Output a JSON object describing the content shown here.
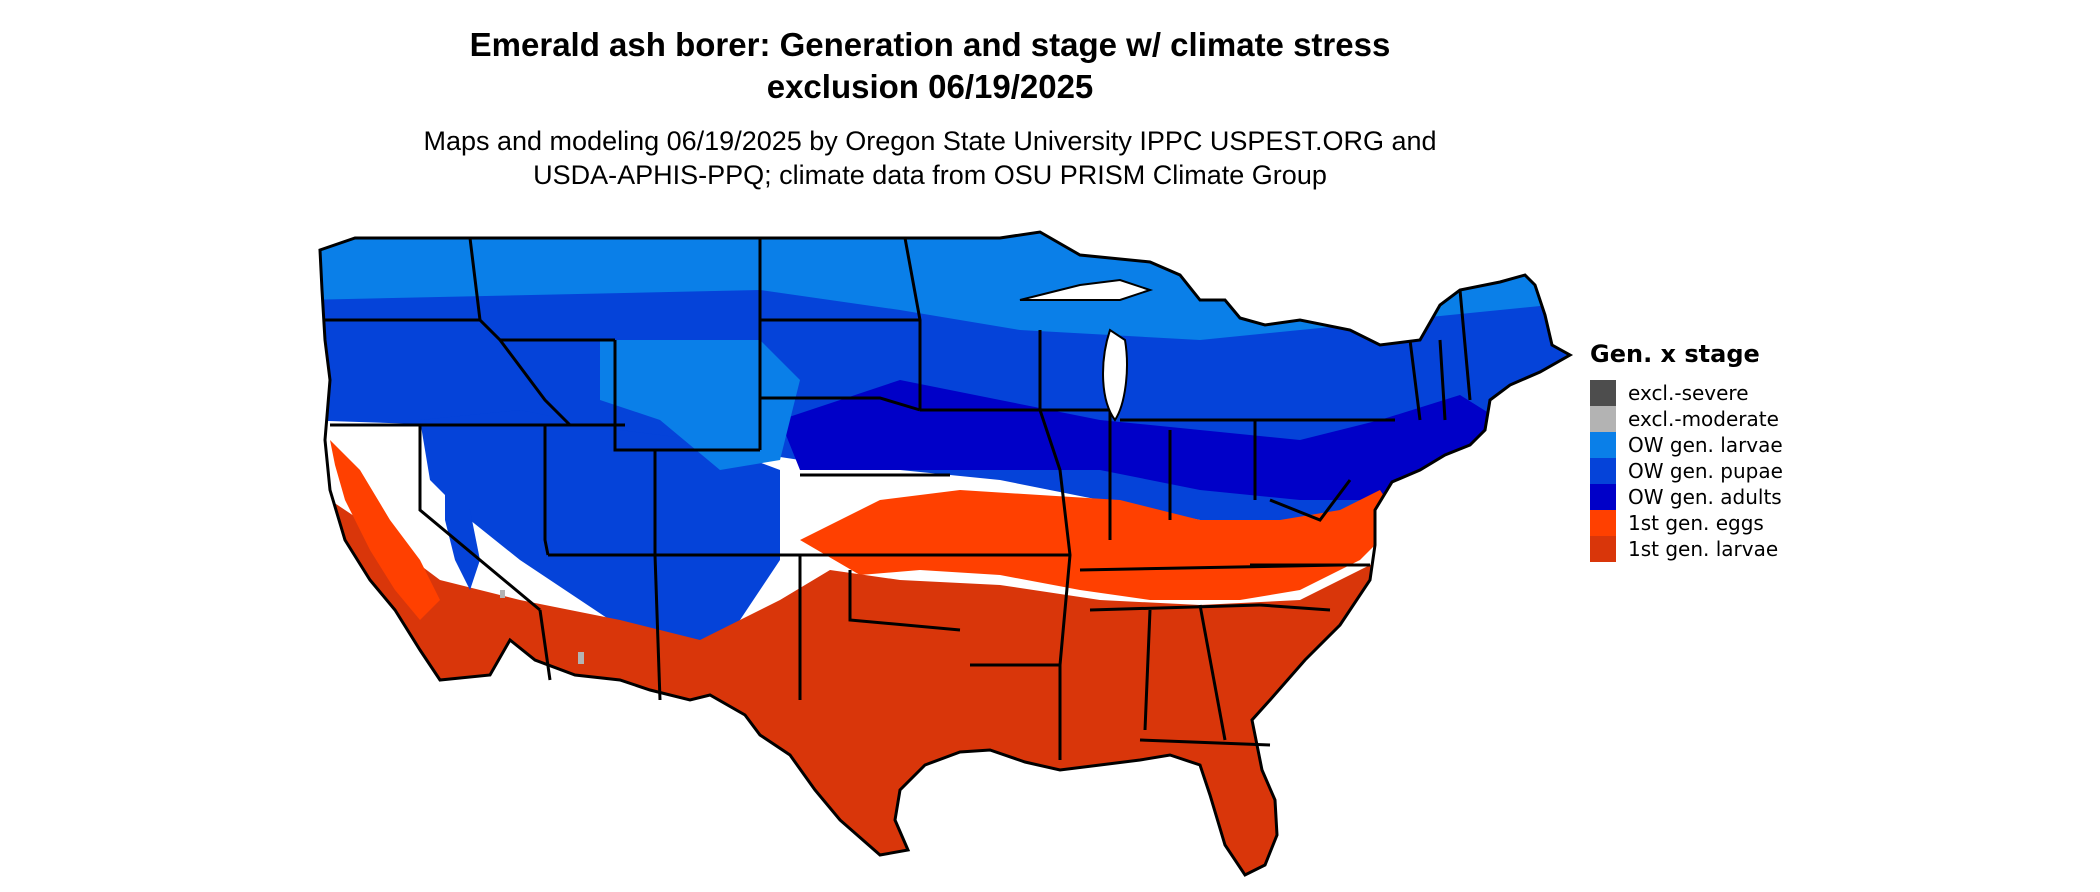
{
  "title_line1": "Emerald ash borer: Generation and stage w/ climate stress",
  "title_line2": "exclusion 06/19/2025",
  "subtitle_line1": "Maps and modeling 06/19/2025 by Oregon State University IPPC USPEST.ORG and",
  "subtitle_line2": "USDA-APHIS-PPQ; climate data from OSU PRISM Climate Group",
  "legend": {
    "title": "Gen. x stage",
    "items": [
      {
        "label": "excl.-severe",
        "color": "#4d4d4d"
      },
      {
        "label": "excl.-moderate",
        "color": "#b3b3b3"
      },
      {
        "label": "OW gen. larvae",
        "color": "#0a7fe8"
      },
      {
        "label": "OW gen. pupae",
        "color": "#0543d9"
      },
      {
        "label": "OW gen. adults",
        "color": "#0000c8"
      },
      {
        "label": "1st gen. eggs",
        "color": "#ff4000"
      },
      {
        "label": "1st gen. larvae",
        "color": "#d9360a"
      }
    ]
  },
  "map_colors": {
    "ow_larvae": "#0a7fe8",
    "ow_pupae": "#0543d9",
    "ow_adults": "#0000c8",
    "gen1_eggs": "#ff4000",
    "gen1_larvae": "#d9360a",
    "excl_moderate": "#b3b3b3",
    "boundary": "#000000"
  }
}
